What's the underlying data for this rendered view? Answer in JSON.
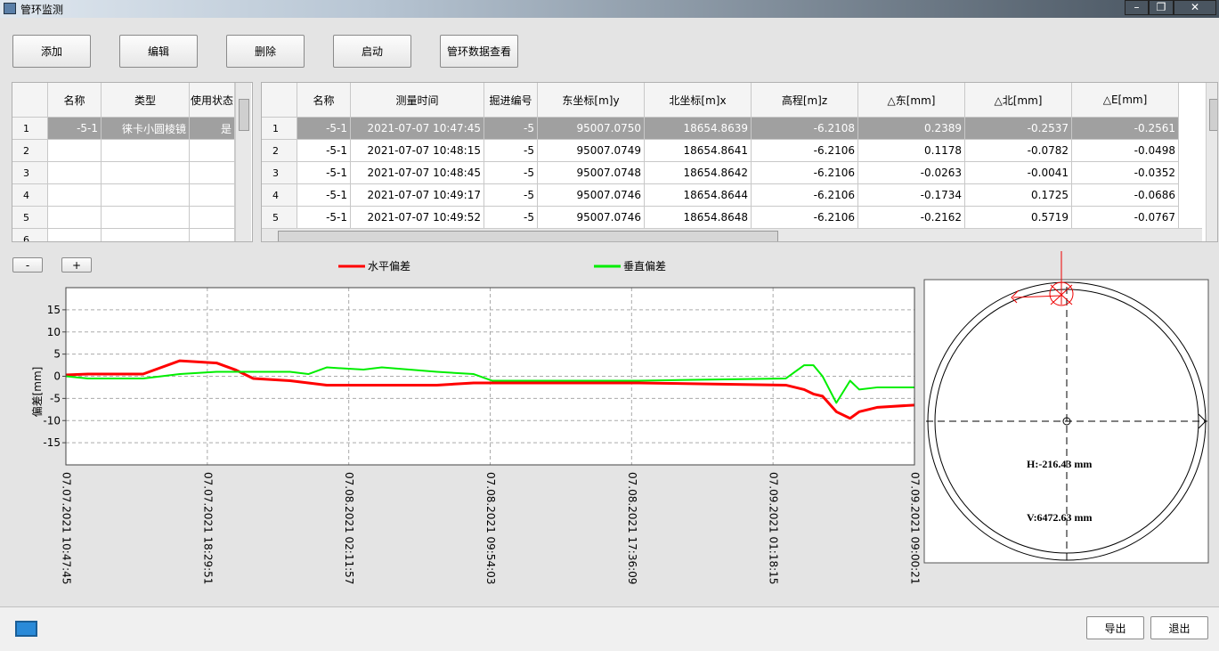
{
  "window": {
    "title": "管环监测"
  },
  "toolbar": [
    "添加",
    "编辑",
    "删除",
    "启动",
    "管环数据查看"
  ],
  "left_table": {
    "headers": [
      "名称",
      "类型",
      "使用状态"
    ],
    "row_labels": [
      "1",
      "2",
      "3",
      "4",
      "5",
      "6"
    ],
    "rows": [
      [
        "-5-1",
        "徕卡小圆棱镜",
        "是"
      ]
    ]
  },
  "right_table": {
    "headers": [
      "名称",
      "测量时间",
      "掘进编号",
      "东坐标[m]y",
      "北坐标[m]x",
      "高程[m]z",
      "△东[mm]",
      "△北[mm]",
      "△E[mm]"
    ],
    "row_labels": [
      "1",
      "2",
      "3",
      "4",
      "5"
    ],
    "rows": [
      [
        "-5-1",
        "2021-07-07 10:47:45",
        "-5",
        "95007.0750",
        "18654.8639",
        "-6.2108",
        "0.2389",
        "-0.2537",
        "-0.2561"
      ],
      [
        "-5-1",
        "2021-07-07 10:48:15",
        "-5",
        "95007.0749",
        "18654.8641",
        "-6.2106",
        "0.1178",
        "-0.0782",
        "-0.0498"
      ],
      [
        "-5-1",
        "2021-07-07 10:48:45",
        "-5",
        "95007.0748",
        "18654.8642",
        "-6.2106",
        "-0.0263",
        "-0.0041",
        "-0.0352"
      ],
      [
        "-5-1",
        "2021-07-07 10:49:17",
        "-5",
        "95007.0746",
        "18654.8644",
        "-6.2106",
        "-0.1734",
        "0.1725",
        "-0.0686"
      ],
      [
        "-5-1",
        "2021-07-07 10:49:52",
        "-5",
        "95007.0746",
        "18654.8648",
        "-6.2106",
        "-0.2162",
        "0.5719",
        "-0.0767"
      ]
    ]
  },
  "zoom_buttons": [
    "-",
    "+"
  ],
  "chart_data": {
    "type": "line",
    "y_label": "偏差[mm]",
    "legend": "top",
    "grid": true,
    "x": [
      "2021-07-07 10:47:45",
      "2021-07-07 12:00:00",
      "2021-07-07 15:00:00",
      "2021-07-07 17:00:00",
      "2021-07-07 19:00:00",
      "2021-07-07 20:00:00",
      "2021-07-07 21:00:00",
      "2021-07-07 23:00:00",
      "2021-07-08 00:00:00",
      "2021-07-08 01:00:00",
      "2021-07-08 03:00:00",
      "2021-07-08 04:00:00",
      "2021-07-08 07:00:00",
      "2021-07-08 09:00:00",
      "2021-07-08 10:00:00",
      "2021-07-08 18:00:00",
      "2021-07-09 02:00:00",
      "2021-07-09 03:00:00",
      "2021-07-09 03:30:00",
      "2021-07-09 04:00:00",
      "2021-07-09 04:45:00",
      "2021-07-09 05:30:00",
      "2021-07-09 06:00:00",
      "2021-07-09 07:00:00",
      "2021-07-09 09:00:21"
    ],
    "series": [
      {
        "name": "水平偏差",
        "color": "#ff0000",
        "values": [
          0.3,
          0.5,
          0.5,
          3.5,
          3,
          1.5,
          -0.5,
          -1,
          -1.5,
          -2,
          -2,
          -2,
          -2,
          -1.5,
          -1.5,
          -1.5,
          -2,
          -3,
          -4,
          -4.5,
          -8,
          -9.5,
          -8,
          -7,
          -6.5
        ]
      },
      {
        "name": "垂直偏差",
        "color": "#00ee00",
        "values": [
          0,
          -0.5,
          -0.5,
          0.5,
          1,
          1,
          1,
          1,
          0.5,
          2,
          1.5,
          2,
          1,
          0.5,
          -1,
          -1,
          -0.5,
          2.5,
          2.5,
          0,
          -6,
          -1,
          -3,
          -2.5,
          -2.5
        ]
      }
    ],
    "xlim": [
      "2021-07-07 10:47:45",
      "2021-07-09 09:00:21"
    ],
    "xticks": [
      {
        "value": "2021-07-07 10:47:45",
        "label": "07.07.2021  10:47:45"
      },
      {
        "value": "2021-07-07 18:29:51",
        "label": "07.07.2021  18:29:51"
      },
      {
        "value": "2021-07-08 02:11:57",
        "label": "07.08.2021  02:11:57"
      },
      {
        "value": "2021-07-08 09:54:03",
        "label": "07.08.2021  09:54:03"
      },
      {
        "value": "2021-07-08 17:36:09",
        "label": "07.08.2021  17:36:09"
      },
      {
        "value": "2021-07-09 01:18:15",
        "label": "07.09.2021  01:18:15"
      },
      {
        "value": "2021-07-09 09:00:21",
        "label": "07.09.2021  09:00:21"
      }
    ],
    "ylim": [
      -20,
      20
    ],
    "yticks": [
      15,
      10,
      5,
      0,
      -5,
      -10,
      -15
    ]
  },
  "deviation_panel": {
    "h": "H:-216.43 mm",
    "v": "V:6472.63 mm"
  },
  "footer_buttons": [
    "导出",
    "退出"
  ]
}
